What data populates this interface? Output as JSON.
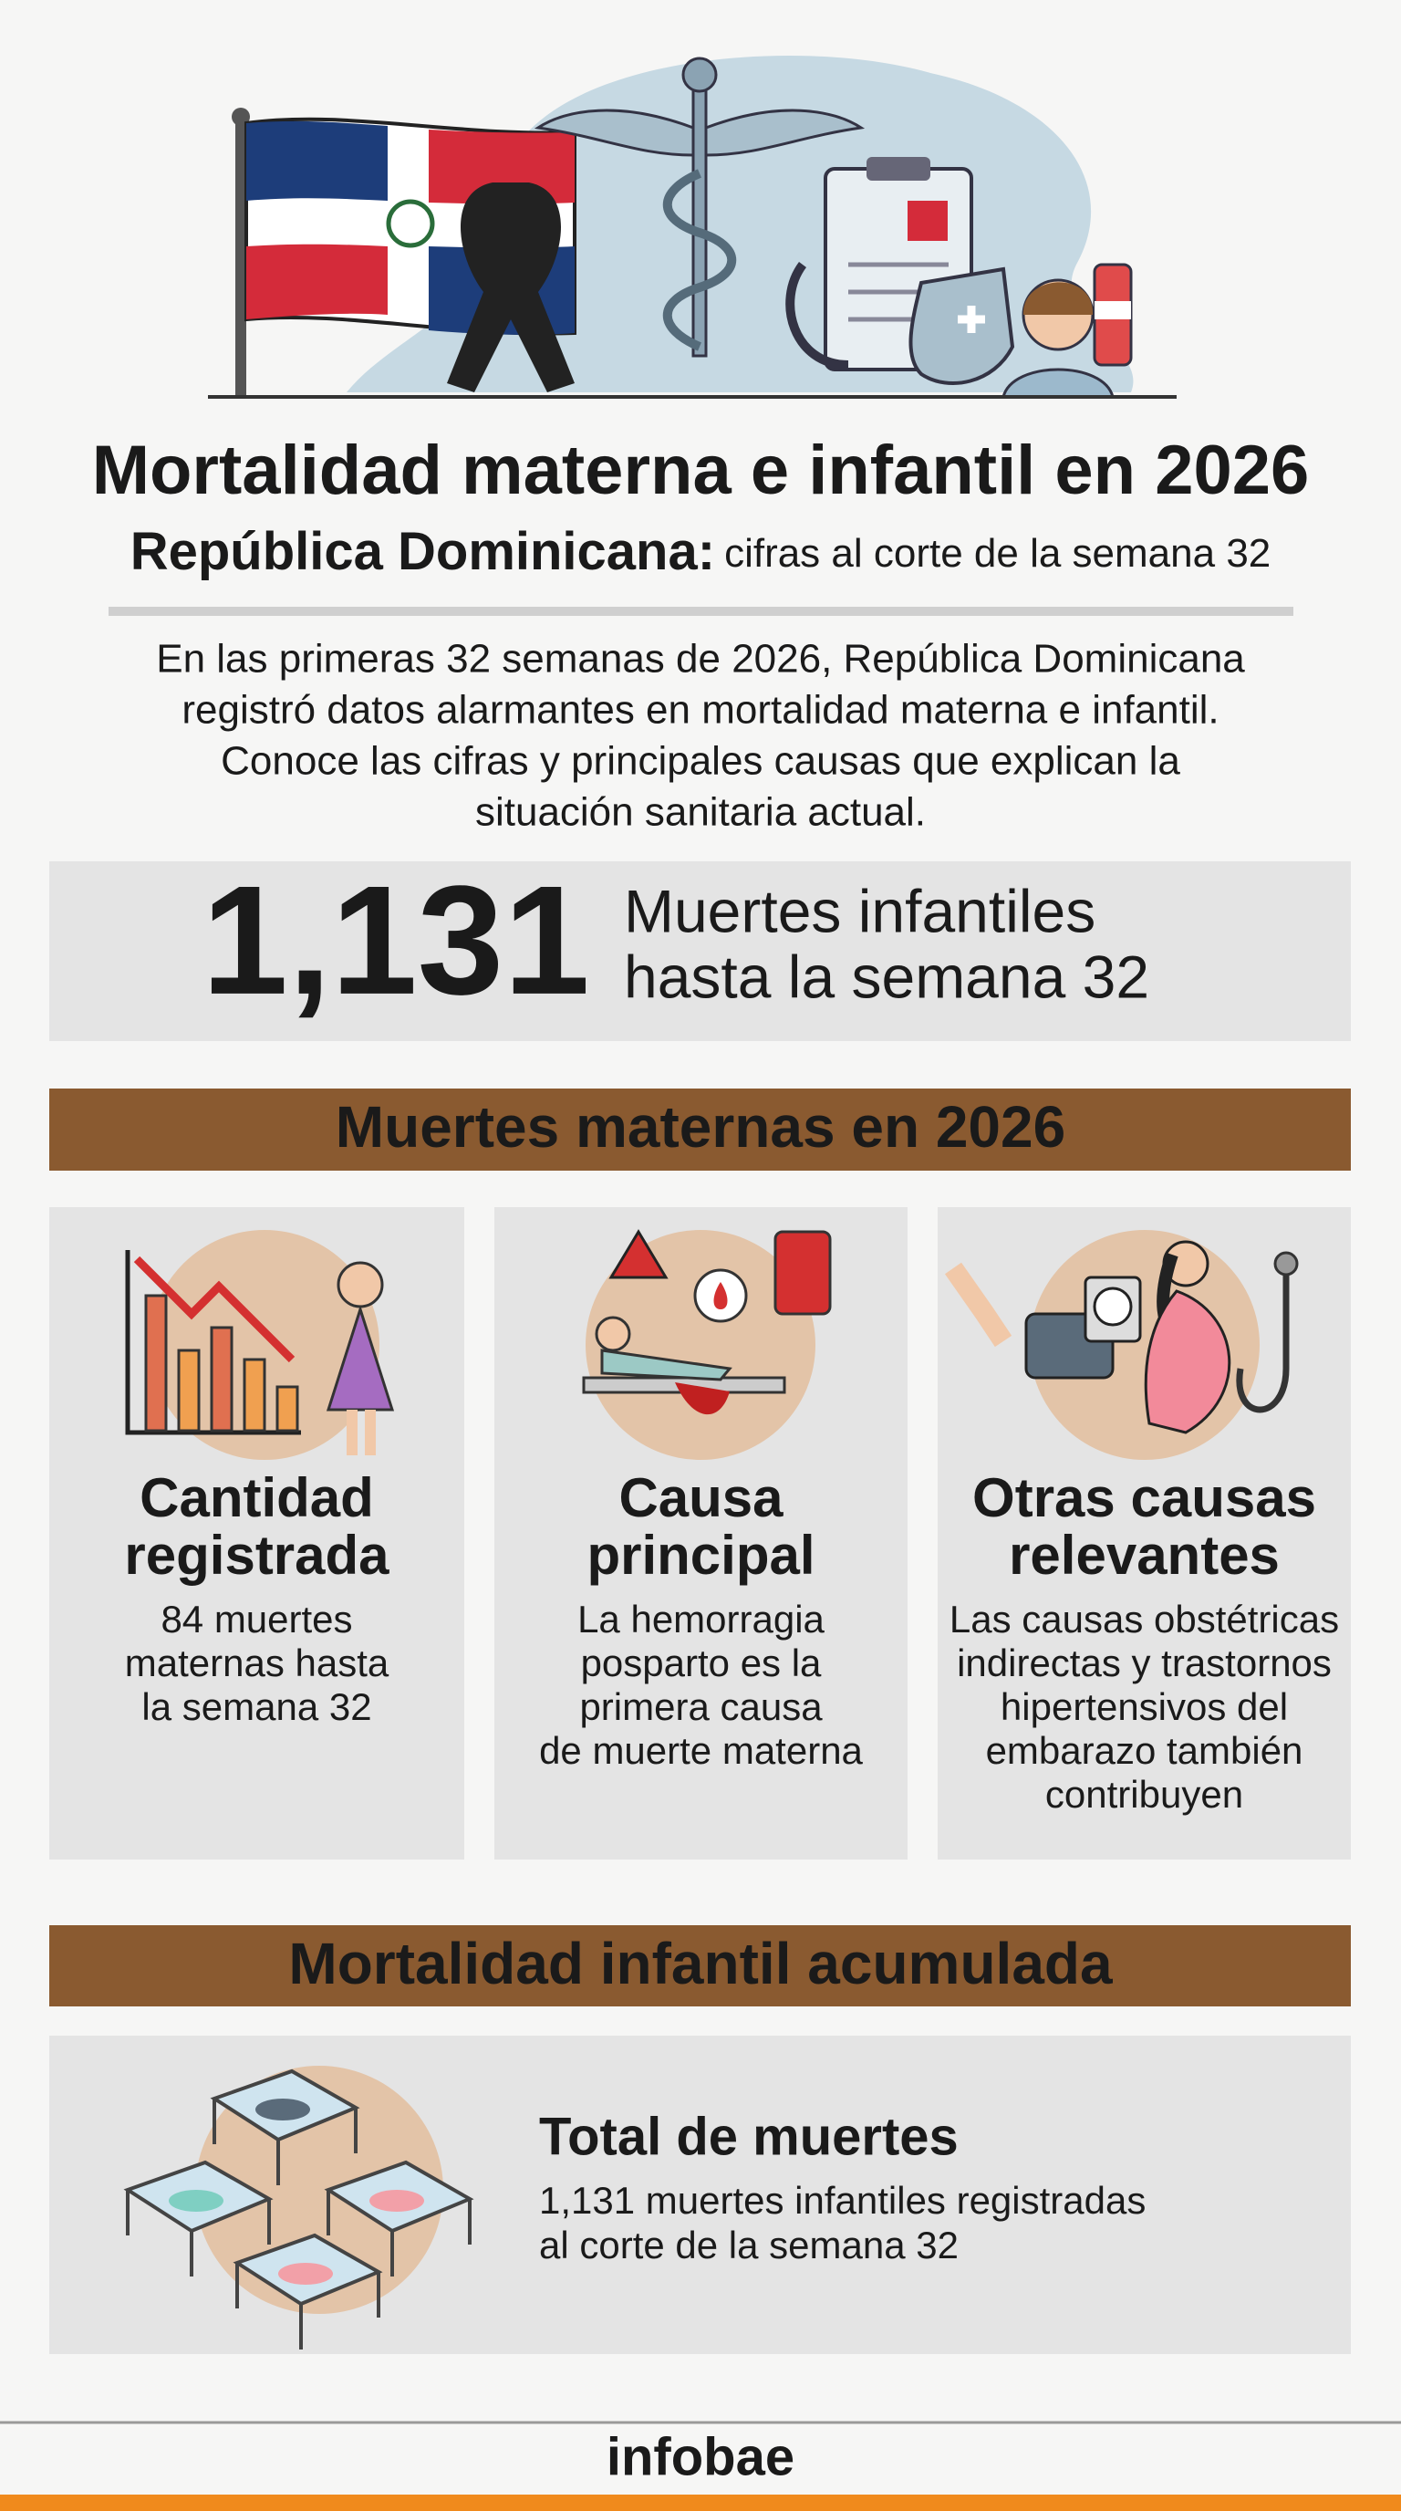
{
  "header": {
    "title": "Mortalidad materna e infantil en 2026",
    "subtitle_bold": "República Dominicana:",
    "subtitle": "cifras al corte de la semana 32"
  },
  "intro": [
    "En las primeras 32 semanas de 2026, República Dominicana",
    "registró datos alarmantes en mortalidad materna e infantil.",
    "Conoce las cifras y principales causas que explican la",
    "situación sanitaria actual."
  ],
  "highlight": {
    "number": "1,131",
    "label": [
      "Muertes infantiles",
      "hasta la semana 32"
    ]
  },
  "maternal": {
    "title": "Muertes maternas en 2026",
    "cards": [
      {
        "title": [
          "Cantidad",
          "registrada"
        ],
        "text": [
          "84 muertes",
          "maternas hasta",
          "la semana 32"
        ]
      },
      {
        "title": [
          "Causa",
          "principal"
        ],
        "text": [
          "La hemorragia",
          "posparto es la",
          "primera causa",
          "de muerte materna"
        ]
      },
      {
        "title": [
          "Otras causas",
          "relevantes"
        ],
        "text": [
          "Las causas obstétricas",
          "indirectas y trastornos",
          "hipertensivos del",
          "embarazo también",
          "contribuyen"
        ]
      }
    ]
  },
  "infant": {
    "title": "Mortalidad infantil acumulada",
    "card_title": "Total de muertes",
    "card_text": [
      "1,131 muertes infantiles registradas",
      "al corte de la semana 32"
    ]
  },
  "footer": {
    "brand": "infobae"
  }
}
